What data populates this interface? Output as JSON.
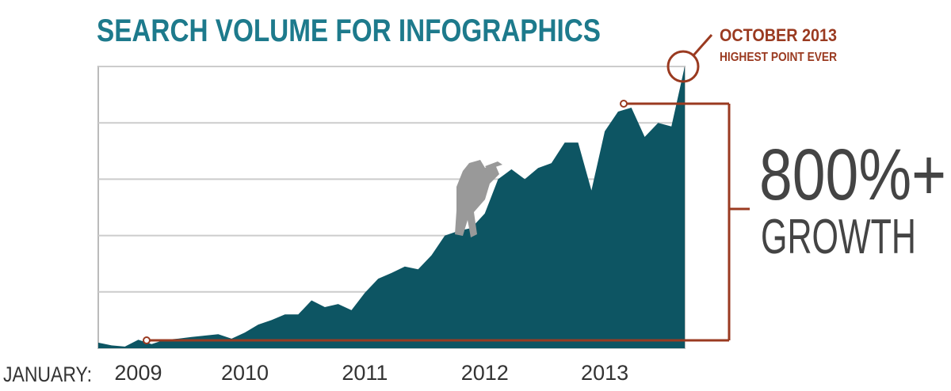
{
  "chart_data": {
    "type": "area",
    "title": "SEARCH VOLUME FOR INFOGRAPHICS",
    "x_label": "JANUARY:",
    "categories": [
      null,
      null,
      null,
      "2009",
      null,
      null,
      null,
      null,
      null,
      null,
      null,
      "2010",
      null,
      null,
      null,
      null,
      null,
      null,
      null,
      null,
      "2011",
      null,
      null,
      null,
      null,
      null,
      null,
      null,
      null,
      "2012",
      null,
      null,
      null,
      null,
      null,
      null,
      null,
      null,
      "2013",
      null,
      null,
      null,
      null,
      null,
      null
    ],
    "values": [
      2,
      1,
      0.6,
      3,
      1.5,
      3,
      3.4,
      4,
      4.5,
      5,
      3.4,
      5.6,
      8.4,
      10,
      12,
      12,
      17,
      14.6,
      15.7,
      13.5,
      19.7,
      24.7,
      26.7,
      29,
      28,
      33,
      40,
      41.6,
      42.7,
      47.8,
      60,
      63.5,
      60,
      64,
      65.7,
      73,
      73,
      56,
      77,
      84,
      85.4,
      75,
      80,
      78.7,
      100
    ],
    "color": "#0d5563",
    "ylim": [
      0,
      100
    ],
    "yticks": [
      0,
      20,
      40,
      60,
      80,
      100
    ],
    "grid": true,
    "annotations": {
      "peak_title": "OCTOBER 2013",
      "peak_subtitle": "HIGHEST POINT EVER",
      "growth_value": "800%+",
      "growth_label": "GROWTH"
    }
  }
}
